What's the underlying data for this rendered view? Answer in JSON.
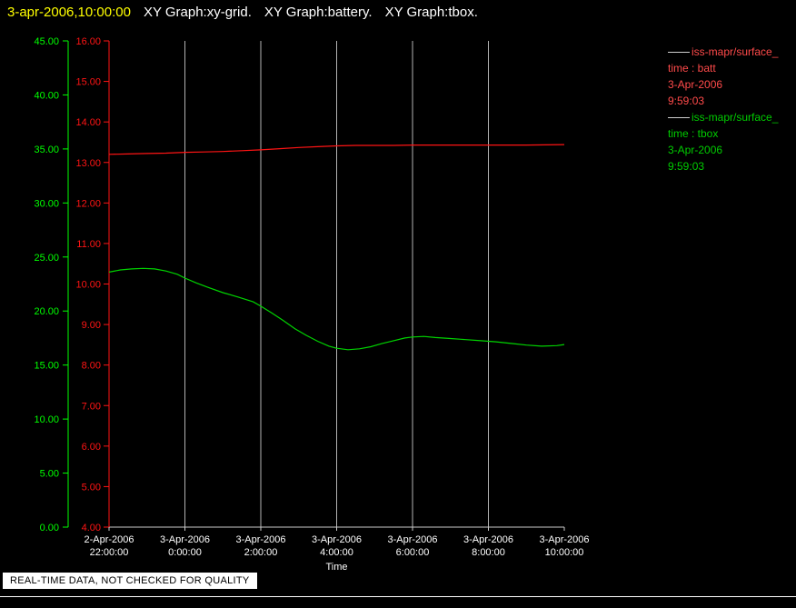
{
  "header": {
    "timestamp": "3-apr-2006,10:00:00",
    "titles": [
      "XY Graph:xy-grid.",
      "XY Graph:battery.",
      "XY Graph:tbox."
    ]
  },
  "legend": {
    "position": "top-right",
    "entries": [
      {
        "name": "iss-mapr/surface_",
        "param": "time : batt",
        "date": "3-Apr-2006",
        "time": "9:59:03",
        "color": "#ff4a4a"
      },
      {
        "name": "iss-mapr/surface_",
        "param": "time : tbox",
        "date": "3-Apr-2006",
        "time": "9:59:03",
        "color": "#00cc00"
      }
    ]
  },
  "status_banner": "REAL-TIME DATA, NOT CHECKED FOR QUALITY",
  "chart_data": {
    "type": "line",
    "title": "",
    "xlabel": "Time",
    "x_unit_note": "hours since 2-Apr-2006 22:00:00",
    "x_range_hours": [
      0,
      12
    ],
    "grid": true,
    "grid_at": [
      2,
      4,
      6,
      8,
      10
    ],
    "x_ticks": [
      {
        "h": 0,
        "date": "2-Apr-2006",
        "time": "22:00:00"
      },
      {
        "h": 2,
        "date": "3-Apr-2006",
        "time": "0:00:00"
      },
      {
        "h": 4,
        "date": "3-Apr-2006",
        "time": "2:00:00"
      },
      {
        "h": 6,
        "date": "3-Apr-2006",
        "time": "4:00:00"
      },
      {
        "h": 8,
        "date": "3-Apr-2006",
        "time": "6:00:00"
      },
      {
        "h": 10,
        "date": "3-Apr-2006",
        "time": "8:00:00"
      },
      {
        "h": 12,
        "date": "3-Apr-2006",
        "time": "10:00:00"
      }
    ],
    "axes": {
      "green": {
        "label": "tbox",
        "min": 0,
        "max": 45,
        "step": 5,
        "color": "#00ff00"
      },
      "red": {
        "label": "batt",
        "min": 4,
        "max": 16,
        "step": 1,
        "color": "#ff1414"
      }
    },
    "series": [
      {
        "name": "iss-mapr/surface_ time : batt",
        "axis": "red",
        "color": "#ff1414",
        "points": [
          [
            0,
            13.2
          ],
          [
            0.5,
            13.21
          ],
          [
            1,
            13.22
          ],
          [
            1.5,
            13.23
          ],
          [
            2,
            13.25
          ],
          [
            2.5,
            13.26
          ],
          [
            3,
            13.27
          ],
          [
            3.5,
            13.29
          ],
          [
            4,
            13.31
          ],
          [
            4.5,
            13.34
          ],
          [
            5,
            13.37
          ],
          [
            5.5,
            13.39
          ],
          [
            6,
            13.41
          ],
          [
            6.5,
            13.42
          ],
          [
            7,
            13.42
          ],
          [
            7.5,
            13.42
          ],
          [
            8,
            13.43
          ],
          [
            9,
            13.43
          ],
          [
            10,
            13.43
          ],
          [
            11,
            13.43
          ],
          [
            12,
            13.44
          ]
        ]
      },
      {
        "name": "iss-mapr/surface_ time : tbox",
        "axis": "green",
        "color": "#00d400",
        "points": [
          [
            0,
            23.6
          ],
          [
            0.3,
            23.8
          ],
          [
            0.6,
            23.9
          ],
          [
            0.9,
            23.95
          ],
          [
            1.2,
            23.9
          ],
          [
            1.5,
            23.7
          ],
          [
            1.8,
            23.4
          ],
          [
            2,
            23.05
          ],
          [
            2.3,
            22.6
          ],
          [
            2.6,
            22.2
          ],
          [
            3,
            21.7
          ],
          [
            3.4,
            21.3
          ],
          [
            3.8,
            20.85
          ],
          [
            4,
            20.45
          ],
          [
            4.3,
            19.8
          ],
          [
            4.6,
            19.1
          ],
          [
            4.9,
            18.35
          ],
          [
            5.2,
            17.75
          ],
          [
            5.5,
            17.2
          ],
          [
            5.8,
            16.75
          ],
          [
            6,
            16.55
          ],
          [
            6.3,
            16.42
          ],
          [
            6.6,
            16.5
          ],
          [
            6.9,
            16.7
          ],
          [
            7.2,
            17.0
          ],
          [
            7.5,
            17.25
          ],
          [
            7.8,
            17.5
          ],
          [
            8,
            17.6
          ],
          [
            8.3,
            17.65
          ],
          [
            8.6,
            17.55
          ],
          [
            9,
            17.45
          ],
          [
            9.4,
            17.35
          ],
          [
            9.8,
            17.25
          ],
          [
            10.2,
            17.15
          ],
          [
            10.6,
            17.0
          ],
          [
            11,
            16.85
          ],
          [
            11.4,
            16.75
          ],
          [
            11.8,
            16.8
          ],
          [
            12,
            16.9
          ]
        ]
      }
    ]
  }
}
